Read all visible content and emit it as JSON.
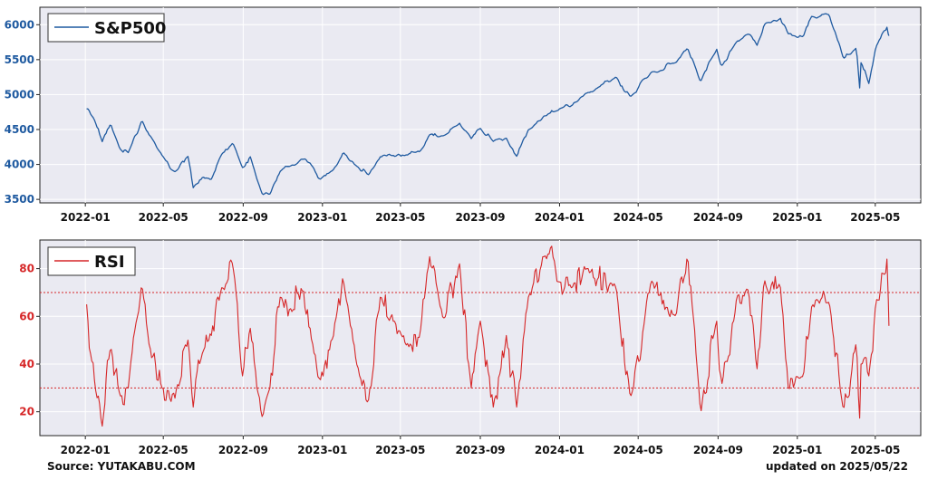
{
  "chart_data": [
    {
      "type": "line",
      "legend": "S&P500",
      "color": "#1f5aa0",
      "y_ticks": [
        "3500",
        "4000",
        "4500",
        "5000",
        "5500",
        "6000"
      ],
      "ylim": [
        3450,
        6250
      ],
      "x_ticks": [
        "2022-01",
        "2022-05",
        "2022-09",
        "2023-01",
        "2023-05",
        "2023-09",
        "2024-01",
        "2024-05",
        "2024-09",
        "2025-01",
        "2025-05"
      ],
      "xlim": [
        "2021-10-23",
        "2025-07-10"
      ],
      "legend_position": "top-left",
      "series": [
        {
          "name": "S&P500",
          "points": [
            [
              "2022-01-03",
              4796
            ],
            [
              "2022-01-14",
              4660
            ],
            [
              "2022-01-27",
              4326
            ],
            [
              "2022-02-09",
              4587
            ],
            [
              "2022-02-23",
              4225
            ],
            [
              "2022-03-08",
              4170
            ],
            [
              "2022-03-29",
              4631
            ],
            [
              "2022-04-12",
              4397
            ],
            [
              "2022-04-29",
              4131
            ],
            [
              "2022-05-12",
              3930
            ],
            [
              "2022-05-20",
              3901
            ],
            [
              "2022-06-08",
              4115
            ],
            [
              "2022-06-16",
              3666
            ],
            [
              "2022-07-01",
              3825
            ],
            [
              "2022-07-14",
              3790
            ],
            [
              "2022-07-29",
              4130
            ],
            [
              "2022-08-16",
              4305
            ],
            [
              "2022-08-31",
              3955
            ],
            [
              "2022-09-12",
              4110
            ],
            [
              "2022-09-30",
              3585
            ],
            [
              "2022-10-12",
              3577
            ],
            [
              "2022-10-28",
              3901
            ],
            [
              "2022-11-15",
              3991
            ],
            [
              "2022-11-30",
              4080
            ],
            [
              "2022-12-13",
              4019
            ],
            [
              "2022-12-28",
              3783
            ],
            [
              "2023-01-18",
              3928
            ],
            [
              "2023-02-02",
              4179
            ],
            [
              "2023-02-24",
              3970
            ],
            [
              "2023-03-13",
              3855
            ],
            [
              "2023-03-31",
              4109
            ],
            [
              "2023-04-20",
              4129
            ],
            [
              "2023-05-10",
              4137
            ],
            [
              "2023-05-31",
              4180
            ],
            [
              "2023-06-15",
              4425
            ],
            [
              "2023-07-06",
              4411
            ],
            [
              "2023-07-31",
              4589
            ],
            [
              "2023-08-18",
              4370
            ],
            [
              "2023-09-01",
              4515
            ],
            [
              "2023-09-21",
              4330
            ],
            [
              "2023-10-11",
              4376
            ],
            [
              "2023-10-27",
              4117
            ],
            [
              "2023-11-14",
              4495
            ],
            [
              "2023-12-14",
              4719
            ],
            [
              "2023-12-29",
              4770
            ],
            [
              "2024-01-19",
              4840
            ],
            [
              "2024-02-12",
              5021
            ],
            [
              "2024-03-28",
              5254
            ],
            [
              "2024-04-19",
              4967
            ],
            [
              "2024-05-21",
              5321
            ],
            [
              "2024-06-28",
              5460
            ],
            [
              "2024-07-16",
              5667
            ],
            [
              "2024-08-05",
              5186
            ],
            [
              "2024-08-30",
              5648
            ],
            [
              "2024-09-06",
              5408
            ],
            [
              "2024-09-30",
              5762
            ],
            [
              "2024-10-18",
              5864
            ],
            [
              "2024-10-31",
              5705
            ],
            [
              "2024-11-11",
              6001
            ],
            [
              "2024-12-06",
              6090
            ],
            [
              "2024-12-18",
              5872
            ],
            [
              "2025-01-10",
              5827
            ],
            [
              "2025-01-23",
              6118
            ],
            [
              "2025-02-19",
              6144
            ],
            [
              "2025-03-13",
              5521
            ],
            [
              "2025-04-02",
              5670
            ],
            [
              "2025-04-08",
              4982
            ],
            [
              "2025-04-09",
              5456
            ],
            [
              "2025-04-21",
              5158
            ],
            [
              "2025-05-02",
              5686
            ],
            [
              "2025-05-13",
              5892
            ],
            [
              "2025-05-19",
              5963
            ],
            [
              "2025-05-22",
              5842
            ]
          ]
        }
      ]
    },
    {
      "type": "line",
      "legend": "RSI",
      "color": "#d62728",
      "y_ticks": [
        "20",
        "40",
        "60",
        "80"
      ],
      "ylim": [
        10,
        92
      ],
      "reference_lines": [
        70,
        30
      ],
      "x_ticks": [
        "2022-01",
        "2022-05",
        "2022-09",
        "2023-01",
        "2023-05",
        "2023-09",
        "2024-01",
        "2024-05",
        "2024-09",
        "2025-01",
        "2025-05"
      ],
      "xlim": [
        "2021-10-23",
        "2025-07-10"
      ],
      "legend_position": "top-left",
      "series": [
        {
          "name": "RSI",
          "points": [
            [
              "2022-01-03",
              65
            ],
            [
              "2022-01-10",
              42
            ],
            [
              "2022-01-24",
              22
            ],
            [
              "2022-01-27",
              14
            ],
            [
              "2022-02-09",
              48
            ],
            [
              "2022-02-23",
              26
            ],
            [
              "2022-03-08",
              30
            ],
            [
              "2022-03-29",
              75
            ],
            [
              "2022-04-12",
              45
            ],
            [
              "2022-04-29",
              30
            ],
            [
              "2022-05-12",
              25
            ],
            [
              "2022-05-20",
              28
            ],
            [
              "2022-06-08",
              50
            ],
            [
              "2022-06-16",
              22
            ],
            [
              "2022-07-01",
              45
            ],
            [
              "2022-07-14",
              52
            ],
            [
              "2022-07-29",
              72
            ],
            [
              "2022-08-16",
              82
            ],
            [
              "2022-08-31",
              35
            ],
            [
              "2022-09-12",
              55
            ],
            [
              "2022-09-30",
              18
            ],
            [
              "2022-10-12",
              30
            ],
            [
              "2022-10-28",
              68
            ],
            [
              "2022-11-15",
              62
            ],
            [
              "2022-11-30",
              72
            ],
            [
              "2022-12-13",
              55
            ],
            [
              "2022-12-28",
              32
            ],
            [
              "2023-01-18",
              52
            ],
            [
              "2023-02-02",
              76
            ],
            [
              "2023-02-24",
              38
            ],
            [
              "2023-03-13",
              25
            ],
            [
              "2023-03-31",
              68
            ],
            [
              "2023-04-20",
              58
            ],
            [
              "2023-05-10",
              48
            ],
            [
              "2023-05-31",
              52
            ],
            [
              "2023-06-15",
              85
            ],
            [
              "2023-07-06",
              58
            ],
            [
              "2023-07-31",
              82
            ],
            [
              "2023-08-18",
              30
            ],
            [
              "2023-09-01",
              58
            ],
            [
              "2023-09-21",
              22
            ],
            [
              "2023-10-11",
              52
            ],
            [
              "2023-10-27",
              22
            ],
            [
              "2023-11-14",
              68
            ],
            [
              "2023-12-14",
              86
            ],
            [
              "2023-12-29",
              75
            ],
            [
              "2024-01-19",
              72
            ],
            [
              "2024-02-12",
              80
            ],
            [
              "2024-03-28",
              72
            ],
            [
              "2024-04-19",
              25
            ],
            [
              "2024-05-21",
              75
            ],
            [
              "2024-06-28",
              60
            ],
            [
              "2024-07-16",
              86
            ],
            [
              "2024-08-05",
              20
            ],
            [
              "2024-08-30",
              58
            ],
            [
              "2024-09-06",
              30
            ],
            [
              "2024-09-30",
              68
            ],
            [
              "2024-10-18",
              72
            ],
            [
              "2024-10-31",
              38
            ],
            [
              "2024-11-11",
              75
            ],
            [
              "2024-12-06",
              72
            ],
            [
              "2024-12-18",
              30
            ],
            [
              "2025-01-10",
              35
            ],
            [
              "2025-01-23",
              64
            ],
            [
              "2025-02-19",
              66
            ],
            [
              "2025-03-13",
              20
            ],
            [
              "2025-04-02",
              50
            ],
            [
              "2025-04-08",
              14
            ],
            [
              "2025-04-09",
              40
            ],
            [
              "2025-04-21",
              35
            ],
            [
              "2025-05-02",
              65
            ],
            [
              "2025-05-13",
              78
            ],
            [
              "2025-05-19",
              84
            ],
            [
              "2025-05-22",
              56
            ]
          ]
        }
      ]
    }
  ],
  "footer": {
    "source": "Source: YUTAKABU.COM",
    "updated": "updated on 2025/05/22"
  }
}
